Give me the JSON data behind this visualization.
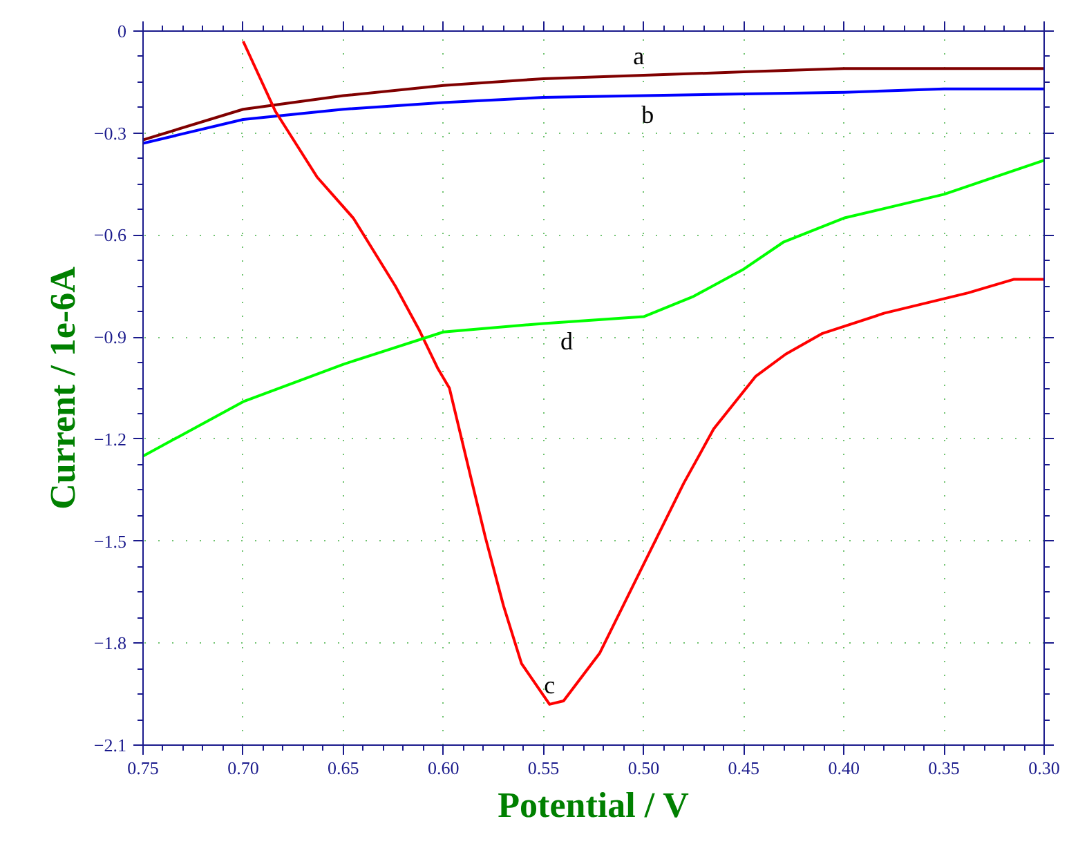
{
  "chart_data": {
    "type": "line",
    "xlabel": "Potential / V",
    "ylabel": "Current / 1e-6A",
    "xlim": [
      0.75,
      0.3
    ],
    "ylim": [
      -2.1,
      0
    ],
    "xticks": [
      {
        "value": 0.75,
        "label": "0.75"
      },
      {
        "value": 0.7,
        "label": "0.70"
      },
      {
        "value": 0.65,
        "label": "0.65"
      },
      {
        "value": 0.6,
        "label": "0.60"
      },
      {
        "value": 0.55,
        "label": "0.55"
      },
      {
        "value": 0.5,
        "label": "0.50"
      },
      {
        "value": 0.45,
        "label": "0.45"
      },
      {
        "value": 0.4,
        "label": "0.40"
      },
      {
        "value": 0.35,
        "label": "0.35"
      },
      {
        "value": 0.3,
        "label": "0.30"
      }
    ],
    "yticks": [
      0,
      -0.3,
      -0.6,
      -0.9,
      -1.2,
      -1.5,
      -1.8,
      -2.1
    ],
    "grid": true,
    "series": [
      {
        "name": "a",
        "color": "#800000",
        "x": [
          0.75,
          0.7,
          0.65,
          0.6,
          0.55,
          0.5,
          0.45,
          0.4,
          0.35,
          0.3
        ],
        "values": [
          -0.32,
          -0.23,
          -0.19,
          -0.16,
          -0.14,
          -0.13,
          -0.12,
          -0.11,
          -0.11,
          -0.11
        ]
      },
      {
        "name": "b",
        "color": "#0000ff",
        "x": [
          0.75,
          0.7,
          0.65,
          0.6,
          0.55,
          0.5,
          0.45,
          0.4,
          0.35,
          0.3
        ],
        "values": [
          -0.33,
          -0.26,
          -0.23,
          -0.21,
          -0.195,
          -0.19,
          -0.185,
          -0.18,
          -0.17,
          -0.17
        ]
      },
      {
        "name": "c",
        "color": "#ff0000",
        "x": [
          0.7,
          0.684,
          0.663,
          0.645,
          0.624,
          0.612,
          0.603,
          0.597,
          0.586,
          0.579,
          0.57,
          0.561,
          0.547,
          0.54,
          0.522,
          0.501,
          0.48,
          0.465,
          0.444,
          0.429,
          0.411,
          0.38,
          0.338,
          0.315,
          0.3
        ],
        "values": [
          -0.03,
          -0.235,
          -0.43,
          -0.55,
          -0.75,
          -0.88,
          -0.99,
          -1.05,
          -1.32,
          -1.49,
          -1.69,
          -1.86,
          -1.98,
          -1.97,
          -1.83,
          -1.58,
          -1.33,
          -1.17,
          -1.015,
          -0.95,
          -0.89,
          -0.83,
          -0.77,
          -0.73,
          -0.73
        ]
      },
      {
        "name": "d",
        "color": "#00ff00",
        "x": [
          0.75,
          0.7,
          0.65,
          0.6,
          0.55,
          0.5,
          0.475,
          0.45,
          0.43,
          0.4,
          0.35,
          0.3
        ],
        "values": [
          -1.25,
          -1.09,
          -0.98,
          -0.885,
          -0.86,
          -0.84,
          -0.78,
          -0.7,
          -0.62,
          -0.55,
          -0.48,
          -0.38
        ]
      }
    ]
  }
}
